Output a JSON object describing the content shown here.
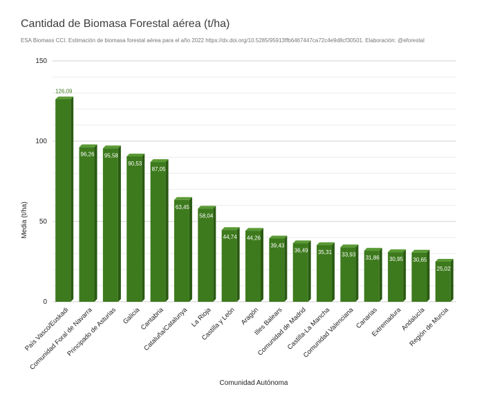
{
  "chart_data": {
    "type": "bar",
    "title": "Cantidad de Biomasa Forestal aérea (t/ha)",
    "subtitle": "ESA Biomass CCI. Estimación de biomasa forestal aérea para el año 2022  https://dx.doi.org/10.5285/95913ffb6467447ca72c4e9d8cf30501. Elaboración: @eforestal",
    "xlabel": "Comunidad Autónoma",
    "ylabel": "Media (t/ha)",
    "ylim": [
      0,
      150
    ],
    "yticks": [
      0,
      50,
      100,
      150
    ],
    "grid": true,
    "categories": [
      "País Vasco/Euskadi",
      "Comunidad Foral de Navarra",
      "Principado de Asturias",
      "Galicia",
      "Cantabria",
      "Cataluña/Catalunya",
      "La Rioja",
      "Castilla y León",
      "Aragón",
      "Illes Balears",
      "Comunidad de Madrid",
      "Castilla-La Mancha",
      "Comunidad Valenciana",
      "Canarias",
      "Extremadura",
      "Andalucía",
      "Región de Murcia"
    ],
    "values": [
      126.09,
      96.26,
      95.58,
      90.53,
      87.05,
      63.45,
      58.04,
      44.74,
      44.26,
      39.43,
      36.49,
      35.31,
      33.93,
      31.86,
      30.95,
      30.65,
      25.02
    ],
    "value_labels": [
      "126,09",
      "96,26",
      "95,58",
      "90,53",
      "87,05",
      "63,45",
      "58,04",
      "44,74",
      "44,26",
      "39,43",
      "36,49",
      "35,31",
      "33,93",
      "31,86",
      "30,95",
      "30,65",
      "25,02"
    ],
    "colors": {
      "bar": "#3d7a1d",
      "bar_top": "#5a9a35",
      "bar_side": "#2a5a12",
      "grid": "#d9d9d9"
    }
  }
}
